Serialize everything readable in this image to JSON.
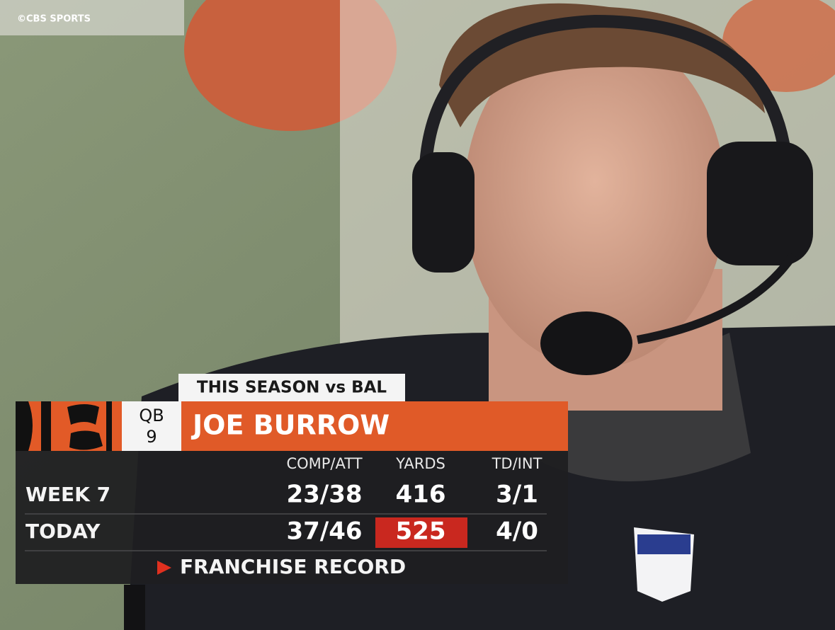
{
  "watermark": "©CBS SPORTS",
  "graphic": {
    "header": "THIS SEASON vs BAL",
    "position": "QB",
    "number": "9",
    "name": "JOE BURROW",
    "columns": [
      "COMP/ATT",
      "YARDS",
      "TD/INT"
    ],
    "rows": [
      [
        "WEEK 7",
        "23/38",
        "416",
        "3/1"
      ],
      [
        "TODAY",
        "37/46",
        "525",
        "4/0"
      ]
    ],
    "footer": "FRANCHISE RECORD"
  }
}
